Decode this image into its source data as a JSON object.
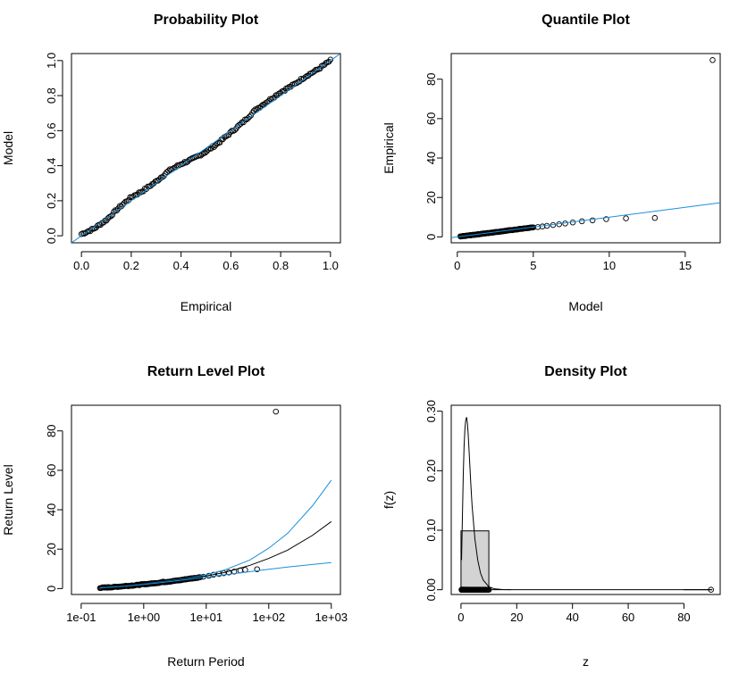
{
  "colors": {
    "reference_line": "#1a8fd8",
    "points": "#000000",
    "histogram_fill": "#d3d3d3",
    "background": "#ffffff"
  },
  "chart_data": [
    {
      "id": "probability",
      "type": "scatter",
      "title": "Probability Plot",
      "xlabel": "Empirical",
      "ylabel": "Model",
      "xlim": [
        -0.04,
        1.04
      ],
      "ylim": [
        -0.04,
        1.04
      ],
      "xticks": [
        0,
        0.2,
        0.4,
        0.6,
        0.8,
        1
      ],
      "xtick_labels": [
        "0.0",
        "0.2",
        "0.4",
        "0.6",
        "0.8",
        "1.0"
      ],
      "yticks": [
        0,
        0.2,
        0.4,
        0.6,
        0.8,
        1
      ],
      "ytick_labels": [
        "0.0",
        "0.2",
        "0.4",
        "0.6",
        "0.8",
        "1.0"
      ],
      "reference_line": {
        "x": [
          -0.04,
          1.04
        ],
        "y": [
          -0.04,
          1.04
        ]
      },
      "points_curve": {
        "x": [
          0.0,
          0.05,
          0.1,
          0.15,
          0.2,
          0.25,
          0.3,
          0.35,
          0.4,
          0.45,
          0.5,
          0.55,
          0.6,
          0.65,
          0.7,
          0.75,
          0.8,
          0.85,
          0.9,
          0.95,
          1.0
        ],
        "y": [
          0.01,
          0.04,
          0.09,
          0.16,
          0.22,
          0.26,
          0.31,
          0.37,
          0.41,
          0.44,
          0.48,
          0.53,
          0.59,
          0.65,
          0.72,
          0.77,
          0.82,
          0.86,
          0.91,
          0.95,
          1.0
        ]
      },
      "n_points": 170
    },
    {
      "id": "quantile",
      "type": "scatter",
      "title": "Quantile Plot",
      "xlabel": "Model",
      "ylabel": "Empirical",
      "xlim": [
        -0.4,
        17.3
      ],
      "ylim": [
        -3,
        93
      ],
      "xticks": [
        0,
        5,
        10,
        15
      ],
      "xtick_labels": [
        "0",
        "5",
        "10",
        "15"
      ],
      "yticks": [
        0,
        20,
        40,
        60,
        80
      ],
      "ytick_labels": [
        "0",
        "20",
        "40",
        "60",
        "80"
      ],
      "reference_line": {
        "x": [
          -0.4,
          17.3
        ],
        "y": [
          -0.4,
          17.3
        ]
      },
      "points_dense_range": [
        0.2,
        5.0
      ],
      "points": [
        {
          "x": 5.3,
          "y": 5.0
        },
        {
          "x": 5.6,
          "y": 5.3
        },
        {
          "x": 5.9,
          "y": 5.6
        },
        {
          "x": 6.3,
          "y": 6.0
        },
        {
          "x": 6.7,
          "y": 6.4
        },
        {
          "x": 7.1,
          "y": 6.8
        },
        {
          "x": 7.6,
          "y": 7.3
        },
        {
          "x": 8.2,
          "y": 7.9
        },
        {
          "x": 8.9,
          "y": 8.4
        },
        {
          "x": 9.8,
          "y": 9.0
        },
        {
          "x": 11.1,
          "y": 9.4
        },
        {
          "x": 13.0,
          "y": 9.6
        },
        {
          "x": 16.8,
          "y": 89.7
        }
      ]
    },
    {
      "id": "return_level",
      "type": "line",
      "title": "Return Level Plot",
      "xlabel": "Return Period",
      "ylabel": "Return Level",
      "log_x": true,
      "xlim": [
        0.07,
        1400
      ],
      "ylim": [
        -3,
        93
      ],
      "xticks": [
        0.1,
        1,
        10,
        100,
        1000
      ],
      "xtick_labels": [
        "1e-01",
        "1e+00",
        "1e+01",
        "1e+02",
        "1e+03"
      ],
      "yticks": [
        0,
        20,
        40,
        60,
        80
      ],
      "ytick_labels": [
        "0",
        "20",
        "40",
        "60",
        "80"
      ],
      "series": [
        {
          "role": "upper",
          "color": "#1a8fd8",
          "x": [
            0.2,
            0.5,
            1,
            2,
            5,
            10,
            20,
            50,
            100,
            200,
            500,
            1000
          ],
          "y": [
            0.4,
            1.3,
            2.3,
            3.5,
            5.2,
            7.0,
            9.5,
            14.5,
            20.5,
            28.0,
            42.0,
            55.0
          ]
        },
        {
          "role": "estimate",
          "color": "#000000",
          "x": [
            0.2,
            0.5,
            1,
            2,
            5,
            10,
            20,
            50,
            100,
            200,
            500,
            1000
          ],
          "y": [
            0.4,
            1.3,
            2.2,
            3.3,
            4.9,
            6.4,
            8.2,
            11.8,
            15.3,
            19.5,
            27.0,
            34.0
          ]
        },
        {
          "role": "lower",
          "color": "#1a8fd8",
          "x": [
            0.2,
            0.5,
            1,
            2,
            5,
            10,
            20,
            50,
            100,
            200,
            500,
            1000
          ],
          "y": [
            0.4,
            1.2,
            2.1,
            3.1,
            4.6,
            5.9,
            7.0,
            8.6,
            9.8,
            10.9,
            12.2,
            13.2
          ]
        }
      ],
      "points_dense_range": [
        0.2,
        8
      ],
      "points": [
        {
          "x": 9,
          "y": 6.0
        },
        {
          "x": 11,
          "y": 6.5
        },
        {
          "x": 13,
          "y": 7.0
        },
        {
          "x": 16,
          "y": 7.4
        },
        {
          "x": 19,
          "y": 7.8
        },
        {
          "x": 23,
          "y": 8.2
        },
        {
          "x": 28,
          "y": 8.6
        },
        {
          "x": 35,
          "y": 9.2
        },
        {
          "x": 42,
          "y": 9.5
        },
        {
          "x": 65,
          "y": 9.8
        },
        {
          "x": 130,
          "y": 89.8
        }
      ]
    },
    {
      "id": "density",
      "type": "histogram",
      "title": "Density Plot",
      "xlabel": "z",
      "ylabel": "f(z)",
      "xlim": [
        -3.5,
        93
      ],
      "ylim": [
        -0.008,
        0.31
      ],
      "xticks": [
        0,
        20,
        40,
        60,
        80
      ],
      "xtick_labels": [
        "0",
        "20",
        "40",
        "60",
        "80"
      ],
      "yticks": [
        0,
        0.1,
        0.2,
        0.3
      ],
      "ytick_labels": [
        "0.00",
        "0.10",
        "0.20",
        "0.30"
      ],
      "bins": [
        {
          "from": 0,
          "to": 10,
          "density": 0.0989
        },
        {
          "from": 10,
          "to": 20,
          "density": 0.0
        },
        {
          "from": 80,
          "to": 90,
          "density": 0.0001
        }
      ],
      "density_curve": {
        "x": [
          0.2,
          0.5,
          0.8,
          1.1,
          1.4,
          1.7,
          2.0,
          2.3,
          2.6,
          3.0,
          3.5,
          4.0,
          5,
          6,
          7,
          8,
          10,
          12,
          15,
          18
        ],
        "y": [
          0.05,
          0.12,
          0.19,
          0.24,
          0.27,
          0.285,
          0.29,
          0.28,
          0.26,
          0.225,
          0.18,
          0.14,
          0.085,
          0.05,
          0.028,
          0.016,
          0.005,
          0.0015,
          0.0003,
          0.0001
        ]
      },
      "rug_range": [
        0.2,
        10
      ],
      "outlier": {
        "x": 89.7,
        "y": 0.0
      }
    }
  ]
}
